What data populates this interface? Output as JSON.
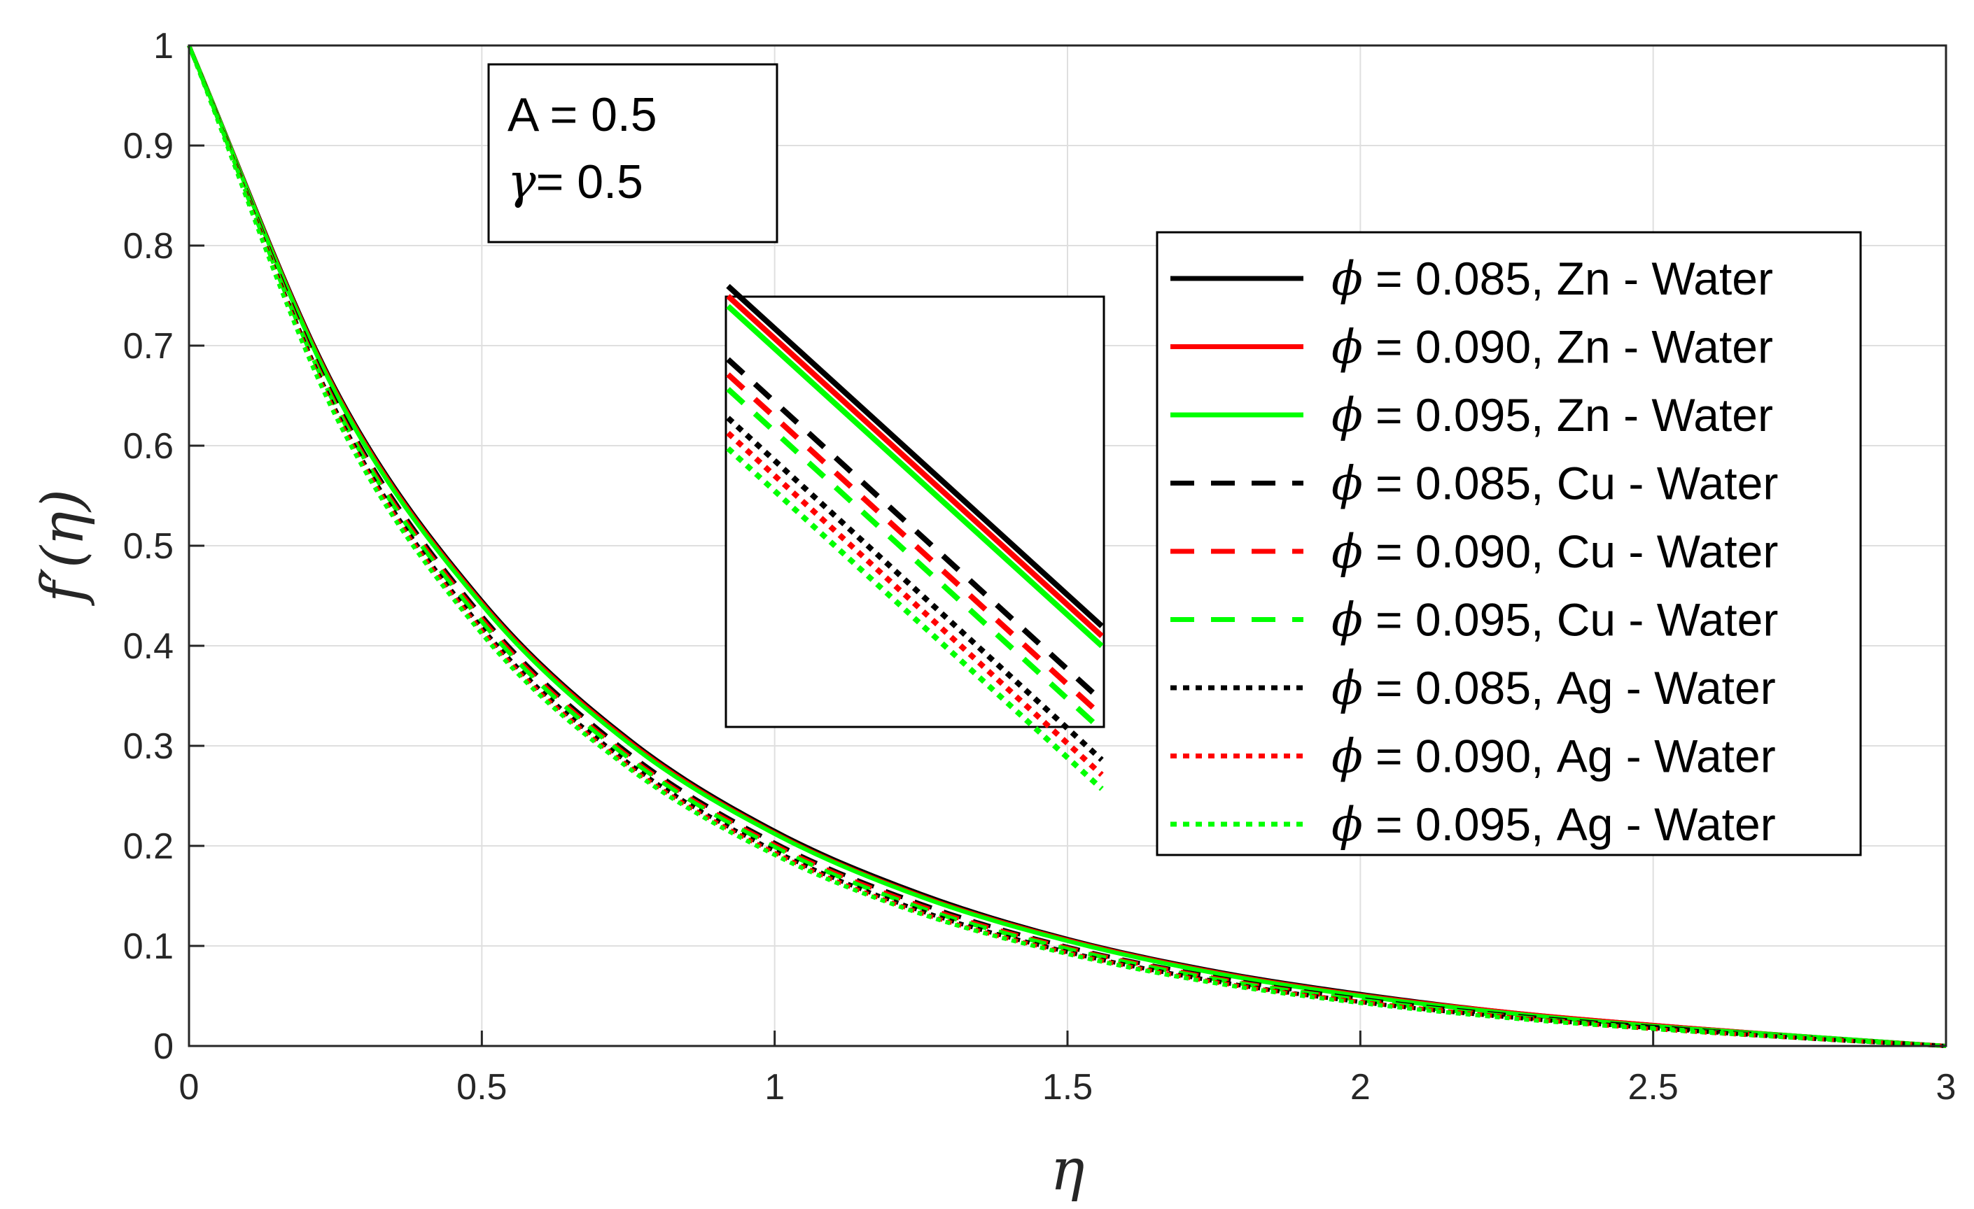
{
  "chart_data": {
    "type": "line",
    "xlabel": "η",
    "ylabel": "f′(η)",
    "xlim": [
      0,
      3
    ],
    "ylim": [
      0,
      1
    ],
    "xticks": [
      0,
      0.5,
      1,
      1.5,
      2,
      2.5,
      3
    ],
    "xtick_labels": [
      "0",
      "0.5",
      "1",
      "1.5",
      "2",
      "2.5",
      "3"
    ],
    "yticks": [
      0,
      0.1,
      0.2,
      0.3,
      0.4,
      0.5,
      0.6,
      0.7,
      0.8,
      0.9,
      1
    ],
    "ytick_labels": [
      "0",
      "0.1",
      "0.2",
      "0.3",
      "0.4",
      "0.5",
      "0.6",
      "0.7",
      "0.8",
      "0.9",
      "1"
    ],
    "grid": true,
    "legend_position": "right",
    "annotation": {
      "line1": "A = 0.5",
      "line2_symbol": "γ",
      "line2_rest": "= 0.5"
    },
    "x": [
      0,
      0.25,
      0.5,
      0.75,
      1.0,
      1.25,
      1.5,
      1.75,
      2.0,
      2.25,
      2.5,
      2.75,
      3.0
    ],
    "series": [
      {
        "name": "= 0.085, Zn - Water",
        "symbol": "ϕ",
        "color": "#000000",
        "style": "solid",
        "values": [
          1.0,
          0.657,
          0.445,
          0.307,
          0.215,
          0.152,
          0.107,
          0.075,
          0.052,
          0.034,
          0.021,
          0.01,
          0.0
        ]
      },
      {
        "name": "= 0.090, Zn - Water",
        "symbol": "ϕ",
        "color": "#ff0000",
        "style": "solid",
        "values": [
          1.0,
          0.655,
          0.443,
          0.305,
          0.213,
          0.15,
          0.106,
          0.074,
          0.051,
          0.034,
          0.021,
          0.01,
          0.0
        ]
      },
      {
        "name": "= 0.095, Zn - Water",
        "symbol": "ϕ",
        "color": "#00ff00",
        "style": "solid",
        "values": [
          1.0,
          0.653,
          0.441,
          0.303,
          0.212,
          0.149,
          0.105,
          0.073,
          0.05,
          0.033,
          0.02,
          0.01,
          0.0
        ]
      },
      {
        "name": "= 0.085, Cu - Water",
        "symbol": "ϕ",
        "color": "#000000",
        "style": "dashed",
        "values": [
          1.0,
          0.645,
          0.43,
          0.293,
          0.203,
          0.142,
          0.099,
          0.069,
          0.047,
          0.031,
          0.019,
          0.009,
          0.0
        ]
      },
      {
        "name": "= 0.090, Cu - Water",
        "symbol": "ϕ",
        "color": "#ff0000",
        "style": "dashed",
        "values": [
          1.0,
          0.642,
          0.427,
          0.29,
          0.201,
          0.14,
          0.098,
          0.068,
          0.046,
          0.03,
          0.018,
          0.009,
          0.0
        ]
      },
      {
        "name": "= 0.095, Cu - Water",
        "symbol": "ϕ",
        "color": "#00ff00",
        "style": "dashed",
        "values": [
          1.0,
          0.64,
          0.424,
          0.288,
          0.199,
          0.138,
          0.097,
          0.067,
          0.046,
          0.03,
          0.018,
          0.009,
          0.0
        ]
      },
      {
        "name": "= 0.085, Ag - Water",
        "symbol": "ϕ",
        "color": "#000000",
        "style": "dotted",
        "values": [
          1.0,
          0.636,
          0.418,
          0.283,
          0.195,
          0.135,
          0.094,
          0.065,
          0.044,
          0.029,
          0.018,
          0.008,
          0.0
        ]
      },
      {
        "name": "= 0.090, Ag - Water",
        "symbol": "ϕ",
        "color": "#ff0000",
        "style": "dotted",
        "values": [
          1.0,
          0.633,
          0.415,
          0.28,
          0.193,
          0.133,
          0.093,
          0.064,
          0.044,
          0.029,
          0.017,
          0.008,
          0.0
        ]
      },
      {
        "name": "= 0.095, Ag - Water",
        "symbol": "ϕ",
        "color": "#00ff00",
        "style": "dotted",
        "values": [
          1.0,
          0.63,
          0.412,
          0.278,
          0.191,
          0.132,
          0.092,
          0.063,
          0.043,
          0.028,
          0.017,
          0.008,
          0.0
        ]
      }
    ]
  }
}
